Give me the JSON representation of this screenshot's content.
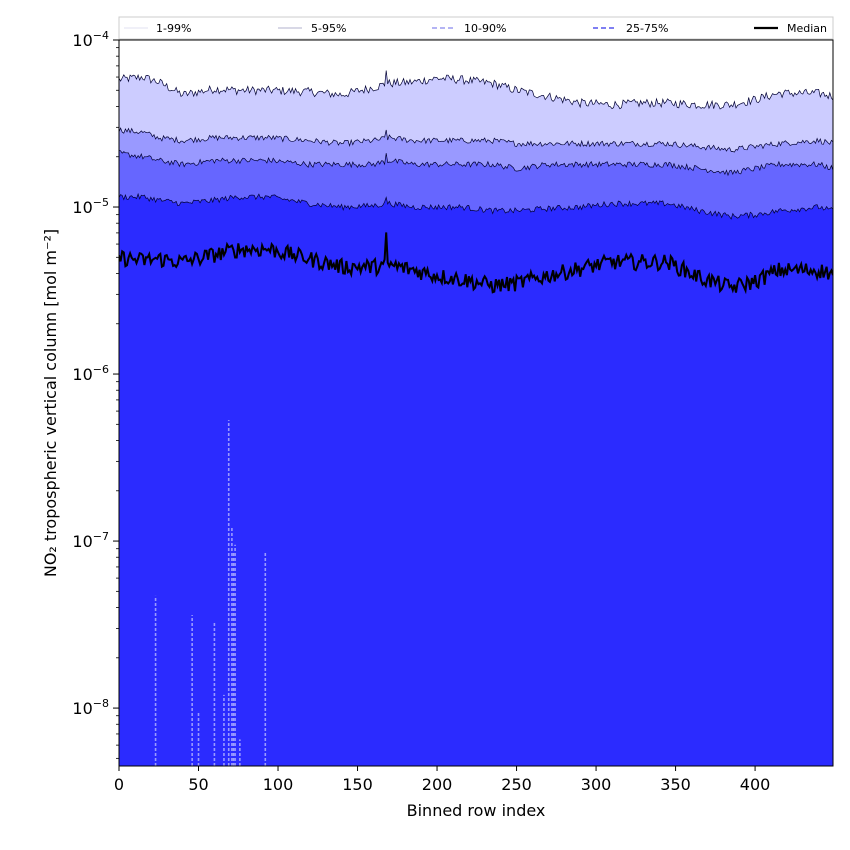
{
  "chart_data": {
    "type": "area",
    "xlabel": "Binned row index",
    "ylabel": "NO₂ tropospheric vertical column [mol m⁻²]",
    "x_range": [
      0,
      449
    ],
    "y_range": [
      4.5e-09,
      0.0001
    ],
    "y_scale": "log",
    "grid": false,
    "legend_position": "top",
    "x_ticks": [
      {
        "value": 0,
        "label": "0"
      },
      {
        "value": 50,
        "label": "50"
      },
      {
        "value": 100,
        "label": "100"
      },
      {
        "value": 150,
        "label": "150"
      },
      {
        "value": 200,
        "label": "200"
      },
      {
        "value": 250,
        "label": "250"
      },
      {
        "value": 300,
        "label": "300"
      },
      {
        "value": 350,
        "label": "350"
      },
      {
        "value": 400,
        "label": "400"
      }
    ],
    "y_ticks": [
      {
        "value": 1e-08,
        "base": "10",
        "exp": "−8"
      },
      {
        "value": 1e-07,
        "base": "10",
        "exp": "−7"
      },
      {
        "value": 1e-06,
        "base": "10",
        "exp": "−6"
      },
      {
        "value": 1e-05,
        "base": "10",
        "exp": "−5"
      },
      {
        "value": 0.0001,
        "base": "10",
        "exp": "−4"
      }
    ],
    "x_knots": [
      0,
      15,
      25,
      40,
      60,
      75,
      95,
      120,
      140,
      160,
      170,
      185,
      200,
      215,
      235,
      250,
      270,
      290,
      310,
      330,
      345,
      365,
      385,
      400,
      415,
      440,
      449
    ],
    "bands": [
      {
        "name": "1-99%",
        "line_color": "#ccccf5",
        "fill": "#ccccff",
        "dash": "solid",
        "width": 0.6,
        "lower_at_floor": true,
        "upper": [
          5.8e-05,
          6e-05,
          5.6e-05,
          4.7e-05,
          5.1e-05,
          5e-05,
          5e-05,
          4.9e-05,
          4.7e-05,
          5.2e-05,
          5.5e-05,
          5.6e-05,
          5.9e-05,
          5.8e-05,
          5.5e-05,
          5e-05,
          4.6e-05,
          4.2e-05,
          4.1e-05,
          4.2e-05,
          4.2e-05,
          4.1e-05,
          4.1e-05,
          4.4e-05,
          4.8e-05,
          4.8e-05,
          4.6e-05
        ]
      },
      {
        "name": "5-95%",
        "line_color": "#9999cc",
        "fill": "#9999ff",
        "dash": "solid",
        "width": 0.7,
        "lower_at_floor": true,
        "upper": [
          2.9e-05,
          2.8e-05,
          2.6e-05,
          2.5e-05,
          2.6e-05,
          2.6e-05,
          2.6e-05,
          2.5e-05,
          2.4e-05,
          2.5e-05,
          2.6e-05,
          2.5e-05,
          2.5e-05,
          2.5e-05,
          2.5e-05,
          2.4e-05,
          2.4e-05,
          2.4e-05,
          2.4e-05,
          2.4e-05,
          2.4e-05,
          2.3e-05,
          2.2e-05,
          2.3e-05,
          2.4e-05,
          2.5e-05,
          2.4e-05
        ]
      },
      {
        "name": "10-90%",
        "line_color": "#8888ee",
        "fill": "#6666ff",
        "dash": "dashed",
        "width": 1.0,
        "lower_at_floor": true,
        "upper": [
          2.1e-05,
          2e-05,
          1.9e-05,
          1.8e-05,
          1.9e-05,
          1.9e-05,
          1.9e-05,
          1.8e-05,
          1.8e-05,
          1.8e-05,
          1.9e-05,
          1.8e-05,
          1.8e-05,
          1.8e-05,
          1.8e-05,
          1.7e-05,
          1.8e-05,
          1.8e-05,
          1.8e-05,
          1.8e-05,
          1.8e-05,
          1.7e-05,
          1.6e-05,
          1.7e-05,
          1.8e-05,
          1.8e-05,
          1.7e-05
        ]
      },
      {
        "name": "25-75%",
        "line_color": "#5555ee",
        "fill": "#3333ff",
        "dash": "dashed",
        "width": 1.2,
        "lower_at_floor": true,
        "upper": [
          1.15e-05,
          1.15e-05,
          1.1e-05,
          1.05e-05,
          1.1e-05,
          1.15e-05,
          1.15e-05,
          1.05e-05,
          1e-05,
          1.02e-05,
          1.05e-05,
          1e-05,
          1e-05,
          1e-05,
          9.5e-06,
          9.5e-06,
          9.8e-06,
          1e-05,
          1.05e-05,
          1.05e-05,
          1.05e-05,
          9.5e-06,
          8.8e-06,
          9e-06,
          9.5e-06,
          1e-05,
          9.5e-06
        ]
      }
    ],
    "median": {
      "name": "Median",
      "color": "#000000",
      "values": [
        5e-06,
        4.8e-06,
        4.9e-06,
        4.7e-06,
        5.2e-06,
        5.6e-06,
        5.6e-06,
        4.9e-06,
        4.4e-06,
        4.4e-06,
        4.5e-06,
        4.2e-06,
        3.9e-06,
        3.7e-06,
        3.4e-06,
        3.5e-06,
        3.9e-06,
        4.3e-06,
        4.7e-06,
        4.7e-06,
        4.7e-06,
        3.8e-06,
        3.3e-06,
        3.6e-06,
        4.2e-06,
        4.2e-06,
        4e-06
      ]
    },
    "low_spikes": [
      {
        "x": 23,
        "y": 4.7e-08
      },
      {
        "x": 46,
        "y": 3.6e-08
      },
      {
        "x": 50,
        "y": 9.5e-09
      },
      {
        "x": 60,
        "y": 3.3e-08
      },
      {
        "x": 66,
        "y": 1.2e-08
      },
      {
        "x": 69,
        "y": 5.3e-07
      },
      {
        "x": 71,
        "y": 1.2e-07
      },
      {
        "x": 72,
        "y": 8.5e-08
      },
      {
        "x": 73,
        "y": 9.5e-08
      },
      {
        "x": 76,
        "y": 6.5e-09
      },
      {
        "x": 92,
        "y": 8.7e-08
      }
    ],
    "legend": [
      "1-99%",
      "5-95%",
      "10-90%",
      "25-75%",
      "Median"
    ]
  }
}
